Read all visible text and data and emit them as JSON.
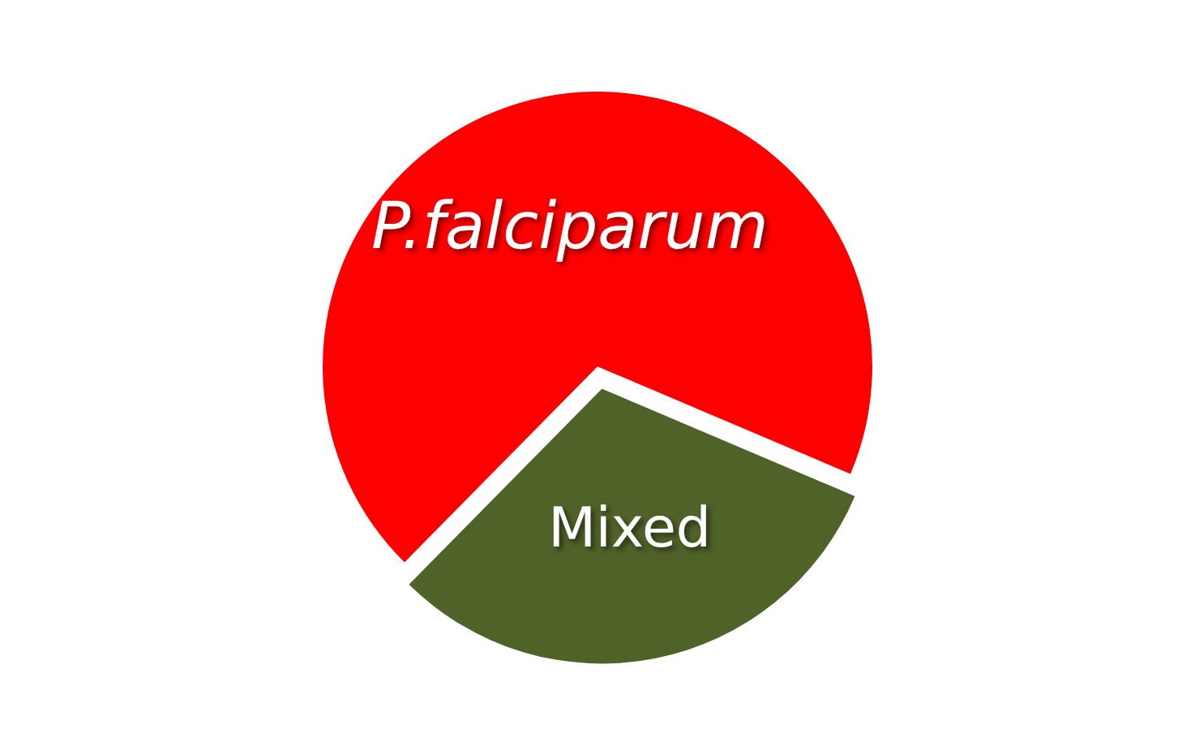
{
  "chart_data": {
    "type": "pie",
    "categories": [
      "P.falciparum",
      "Mixed"
    ],
    "values": [
      69,
      31
    ],
    "colors": [
      "#ff0000",
      "#4f6228"
    ],
    "legend": false
  }
}
